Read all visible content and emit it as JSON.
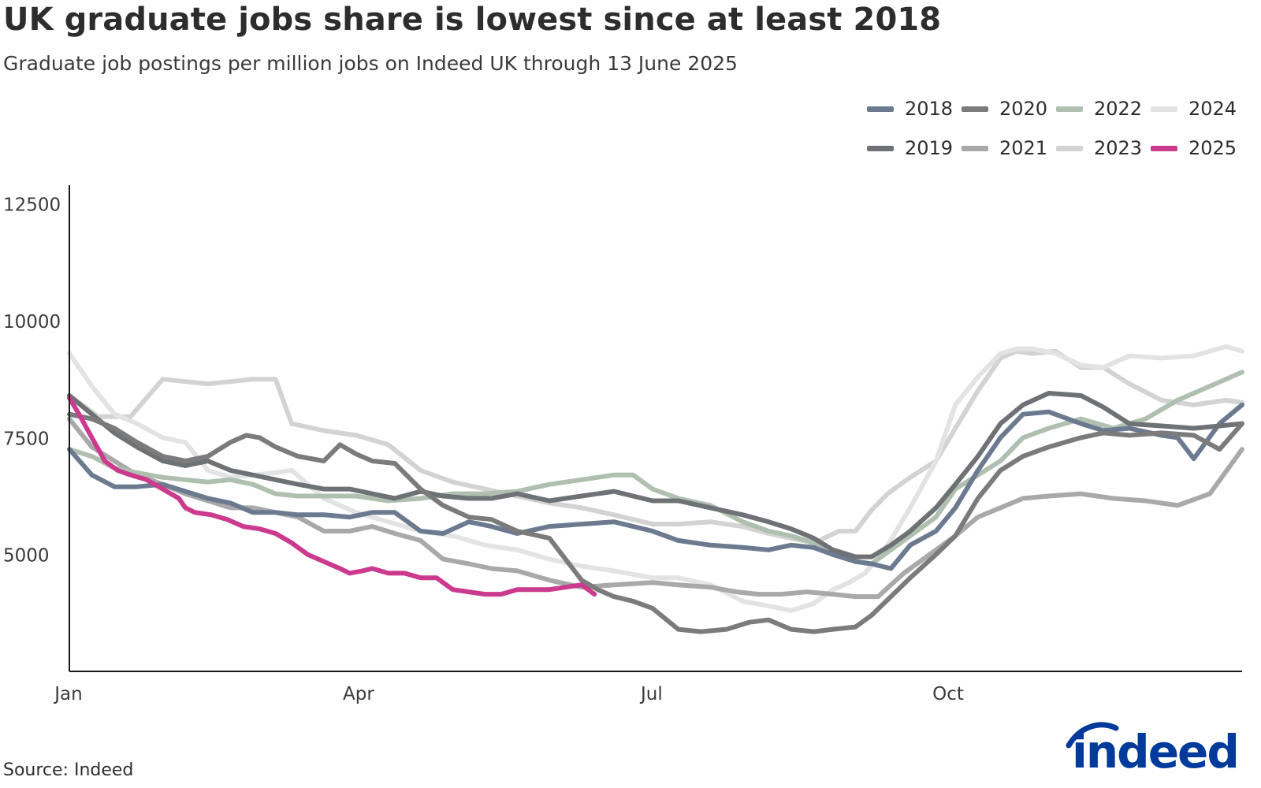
{
  "title": "UK graduate jobs share is lowest since at least 2018",
  "subtitle": "Graduate job postings per million jobs on Indeed UK through 13 June 2025",
  "source": "Source: Indeed",
  "brand": {
    "name": "indeed",
    "color": "#003a9b"
  },
  "legend": [
    {
      "label": "2018",
      "color": "#6b7a8f"
    },
    {
      "label": "2020",
      "color": "#7b7b7b"
    },
    {
      "label": "2022",
      "color": "#afbfb0"
    },
    {
      "label": "2024",
      "color": "#e3e3e3"
    },
    {
      "label": "2019",
      "color": "#6e7175"
    },
    {
      "label": "2021",
      "color": "#a9a9a9"
    },
    {
      "label": "2023",
      "color": "#d3d3d3"
    },
    {
      "label": "2025",
      "color": "#cc3a8e"
    }
  ],
  "chart_data": {
    "type": "line",
    "title": "UK graduate jobs share is lowest since at least 2018",
    "subtitle": "Graduate job postings per million jobs on Indeed UK through 13 June 2025",
    "xlabel": "",
    "ylabel": "",
    "x_unit": "day of year",
    "xlim": [
      1,
      365
    ],
    "ylim": [
      2500,
      12900
    ],
    "x_ticks": [
      {
        "label": "Jan",
        "day": 1
      },
      {
        "label": "Apr",
        "day": 91
      },
      {
        "label": "Jul",
        "day": 182
      },
      {
        "label": "Oct",
        "day": 274
      }
    ],
    "y_ticks": [
      5000,
      7500,
      10000,
      12500
    ],
    "grid": false,
    "legend_position": "top-right",
    "series": [
      {
        "name": "2023",
        "color": "#d3d3d3",
        "x": [
          1,
          10,
          20,
          30,
          37,
          44,
          51,
          58,
          65,
          70,
          80,
          90,
          100,
          110,
          120,
          130,
          140,
          150,
          160,
          170,
          182,
          190,
          200,
          210,
          218,
          225,
          232,
          240,
          245,
          250,
          255,
          262,
          270,
          276,
          283,
          290,
          295,
          300,
          307,
          315,
          322,
          330,
          340,
          350,
          360,
          365
        ],
        "values": [
          8400,
          7950,
          7950,
          8750,
          8700,
          8650,
          8700,
          8750,
          8750,
          7800,
          7650,
          7550,
          7350,
          6800,
          6550,
          6400,
          6250,
          6100,
          6000,
          5850,
          5650,
          5650,
          5700,
          5600,
          5450,
          5350,
          5250,
          5500,
          5500,
          5950,
          6300,
          6650,
          7000,
          7700,
          8500,
          9200,
          9350,
          9300,
          9350,
          9000,
          9000,
          8650,
          8300,
          8200,
          8300,
          8250
        ]
      },
      {
        "name": "2024",
        "color": "#e3e3e3",
        "x": [
          1,
          8,
          15,
          22,
          30,
          37,
          44,
          51,
          58,
          65,
          70,
          80,
          90,
          100,
          110,
          120,
          130,
          140,
          150,
          160,
          170,
          182,
          190,
          200,
          210,
          218,
          225,
          232,
          238,
          243,
          248,
          255,
          262,
          270,
          276,
          283,
          290,
          295,
          300,
          307,
          315,
          322,
          330,
          340,
          350,
          360,
          365
        ],
        "values": [
          9300,
          8600,
          8000,
          7800,
          7500,
          7400,
          6800,
          6650,
          6700,
          6750,
          6800,
          6200,
          5900,
          5700,
          5500,
          5400,
          5200,
          5100,
          4900,
          4750,
          4650,
          4500,
          4500,
          4350,
          4000,
          3900,
          3800,
          3950,
          4250,
          4400,
          4600,
          5200,
          6000,
          7000,
          8200,
          8800,
          9300,
          9400,
          9400,
          9300,
          9050,
          9000,
          9250,
          9200,
          9250,
          9450,
          9350
        ]
      },
      {
        "name": "2021",
        "color": "#a9a9a9",
        "x": [
          1,
          8,
          15,
          22,
          30,
          37,
          44,
          51,
          58,
          65,
          72,
          80,
          88,
          95,
          102,
          110,
          117,
          125,
          132,
          140,
          150,
          160,
          170,
          182,
          190,
          200,
          208,
          215,
          222,
          230,
          238,
          245,
          252,
          260,
          268,
          276,
          283,
          290,
          297,
          305,
          315,
          325,
          335,
          345,
          355,
          365
        ],
        "values": [
          7900,
          7300,
          7000,
          6700,
          6500,
          6300,
          6150,
          6000,
          6000,
          5900,
          5800,
          5500,
          5500,
          5600,
          5450,
          5300,
          4900,
          4800,
          4700,
          4650,
          4450,
          4300,
          4350,
          4400,
          4350,
          4300,
          4200,
          4150,
          4150,
          4200,
          4150,
          4100,
          4100,
          4600,
          5000,
          5400,
          5800,
          6000,
          6200,
          6250,
          6300,
          6200,
          6150,
          6050,
          6300,
          7250
        ]
      },
      {
        "name": "2022",
        "color": "#afbfb0",
        "x": [
          1,
          8,
          15,
          22,
          30,
          37,
          44,
          51,
          58,
          65,
          72,
          80,
          90,
          100,
          110,
          120,
          130,
          140,
          150,
          160,
          170,
          176,
          182,
          190,
          200,
          210,
          218,
          225,
          232,
          238,
          245,
          250,
          256,
          262,
          270,
          276,
          283,
          290,
          297,
          305,
          315,
          325,
          335,
          345,
          355,
          365
        ],
        "values": [
          7250,
          7100,
          6850,
          6750,
          6650,
          6600,
          6550,
          6600,
          6500,
          6300,
          6250,
          6250,
          6250,
          6150,
          6200,
          6300,
          6300,
          6350,
          6500,
          6600,
          6700,
          6700,
          6400,
          6200,
          6050,
          5700,
          5500,
          5400,
          5250,
          5000,
          4850,
          4800,
          5100,
          5400,
          5800,
          6400,
          6700,
          7000,
          7500,
          7700,
          7900,
          7700,
          7900,
          8300,
          8600,
          8900
        ]
      },
      {
        "name": "2018",
        "color": "#6b7a8f",
        "x": [
          1,
          8,
          15,
          22,
          30,
          37,
          44,
          51,
          58,
          65,
          72,
          80,
          88,
          95,
          102,
          110,
          117,
          125,
          132,
          140,
          150,
          160,
          170,
          182,
          190,
          200,
          210,
          218,
          225,
          232,
          238,
          245,
          250,
          256,
          262,
          270,
          276,
          283,
          290,
          297,
          305,
          315,
          322,
          330,
          340,
          345,
          350,
          358,
          365
        ],
        "values": [
          7250,
          6700,
          6450,
          6450,
          6500,
          6350,
          6200,
          6100,
          5900,
          5900,
          5850,
          5850,
          5800,
          5900,
          5900,
          5500,
          5450,
          5700,
          5600,
          5450,
          5600,
          5650,
          5700,
          5500,
          5300,
          5200,
          5150,
          5100,
          5200,
          5150,
          5000,
          4850,
          4800,
          4700,
          5200,
          5500,
          6000,
          6800,
          7500,
          8000,
          8050,
          7800,
          7650,
          7700,
          7550,
          7500,
          7050,
          7800,
          8200
        ]
      },
      {
        "name": "2019",
        "color": "#6e7175",
        "x": [
          1,
          8,
          15,
          22,
          30,
          37,
          44,
          51,
          58,
          65,
          72,
          80,
          88,
          95,
          102,
          110,
          117,
          125,
          132,
          140,
          150,
          160,
          170,
          182,
          190,
          200,
          210,
          218,
          225,
          232,
          238,
          245,
          250,
          256,
          262,
          270,
          276,
          283,
          290,
          297,
          305,
          315,
          322,
          330,
          340,
          350,
          358,
          365
        ],
        "values": [
          8400,
          8000,
          7600,
          7300,
          7000,
          6900,
          7000,
          6800,
          6700,
          6600,
          6500,
          6400,
          6400,
          6300,
          6200,
          6350,
          6250,
          6200,
          6200,
          6300,
          6150,
          6250,
          6350,
          6150,
          6150,
          6000,
          5850,
          5700,
          5550,
          5350,
          5100,
          4950,
          4950,
          5200,
          5500,
          6000,
          6500,
          7100,
          7800,
          8200,
          8450,
          8400,
          8150,
          7800,
          7750,
          7700,
          7750,
          7800
        ]
      },
      {
        "name": "2020",
        "color": "#7b7b7b",
        "x": [
          1,
          8,
          15,
          22,
          30,
          37,
          44,
          51,
          56,
          60,
          65,
          72,
          80,
          85,
          90,
          95,
          102,
          110,
          117,
          125,
          132,
          140,
          150,
          155,
          160,
          165,
          170,
          176,
          182,
          190,
          197,
          205,
          212,
          218,
          225,
          232,
          238,
          245,
          250,
          256,
          262,
          270,
          276,
          283,
          290,
          297,
          305,
          315,
          322,
          330,
          340,
          350,
          358,
          365
        ],
        "values": [
          8000,
          7900,
          7700,
          7400,
          7100,
          7000,
          7100,
          7400,
          7550,
          7500,
          7300,
          7100,
          7000,
          7350,
          7150,
          7000,
          6950,
          6400,
          6050,
          5800,
          5750,
          5500,
          5350,
          4900,
          4450,
          4250,
          4100,
          4000,
          3850,
          3400,
          3350,
          3400,
          3550,
          3600,
          3400,
          3350,
          3400,
          3450,
          3700,
          4100,
          4500,
          5000,
          5400,
          6200,
          6800,
          7100,
          7300,
          7500,
          7600,
          7550,
          7600,
          7550,
          7250,
          7800
        ]
      },
      {
        "name": "2025",
        "color": "#cc3a8e",
        "x": [
          1,
          4,
          8,
          12,
          16,
          20,
          25,
          30,
          35,
          37,
          40,
          45,
          50,
          55,
          60,
          65,
          70,
          75,
          80,
          85,
          88,
          92,
          95,
          100,
          105,
          110,
          115,
          120,
          125,
          130,
          135,
          140,
          145,
          150,
          155,
          160,
          164
        ],
        "values": [
          8350,
          8000,
          7500,
          7000,
          6800,
          6700,
          6600,
          6400,
          6200,
          6000,
          5900,
          5850,
          5750,
          5600,
          5550,
          5450,
          5250,
          5000,
          4850,
          4700,
          4600,
          4650,
          4700,
          4600,
          4600,
          4500,
          4500,
          4250,
          4200,
          4150,
          4150,
          4250,
          4250,
          4250,
          4300,
          4350,
          4150
        ]
      }
    ]
  }
}
